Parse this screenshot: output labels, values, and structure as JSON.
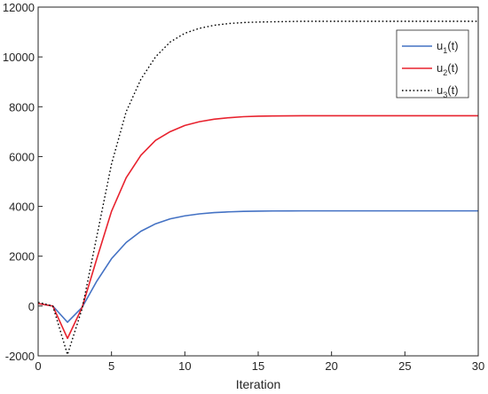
{
  "chart_data": {
    "type": "line",
    "title": "",
    "xlabel": "Iteration",
    "ylabel": "",
    "xlim": [
      0,
      30
    ],
    "ylim": [
      -2000,
      12000
    ],
    "xticks": [
      0,
      5,
      10,
      15,
      20,
      25,
      30
    ],
    "yticks": [
      -2000,
      0,
      2000,
      4000,
      6000,
      8000,
      10000,
      12000
    ],
    "grid": false,
    "legend_position": "top-right",
    "x": [
      0,
      1,
      2,
      3,
      4,
      5,
      6,
      7,
      8,
      9,
      10,
      11,
      12,
      13,
      14,
      15,
      16,
      17,
      18,
      19,
      20,
      21,
      22,
      23,
      24,
      25,
      26,
      27,
      28,
      29,
      30
    ],
    "series": [
      {
        "name": "u",
        "subscript": "1",
        "suffix": "(t)",
        "color": "#4472c4",
        "style": "solid",
        "values": [
          100,
          0,
          -650,
          -50,
          1000,
          1900,
          2550,
          3000,
          3300,
          3500,
          3620,
          3700,
          3750,
          3780,
          3800,
          3810,
          3815,
          3818,
          3820,
          3820,
          3820,
          3820,
          3820,
          3820,
          3820,
          3820,
          3820,
          3820,
          3820,
          3820,
          3820
        ]
      },
      {
        "name": "u",
        "subscript": "2",
        "suffix": "(t)",
        "color": "#e8222e",
        "style": "solid",
        "values": [
          100,
          0,
          -1300,
          -50,
          1900,
          3800,
          5150,
          6050,
          6650,
          7000,
          7250,
          7400,
          7500,
          7560,
          7600,
          7620,
          7630,
          7635,
          7640,
          7640,
          7640,
          7640,
          7640,
          7640,
          7640,
          7640,
          7640,
          7640,
          7640,
          7640,
          7640
        ]
      },
      {
        "name": "u",
        "subscript": "3",
        "suffix": "(t)",
        "color": "#000000",
        "style": "dotted",
        "values": [
          150,
          0,
          -1950,
          -100,
          2800,
          5700,
          7800,
          9100,
          10000,
          10600,
          10950,
          11150,
          11270,
          11340,
          11380,
          11400,
          11410,
          11420,
          11430,
          11430,
          11430,
          11430,
          11430,
          11430,
          11430,
          11430,
          11430,
          11430,
          11430,
          11430,
          11430
        ]
      }
    ]
  }
}
